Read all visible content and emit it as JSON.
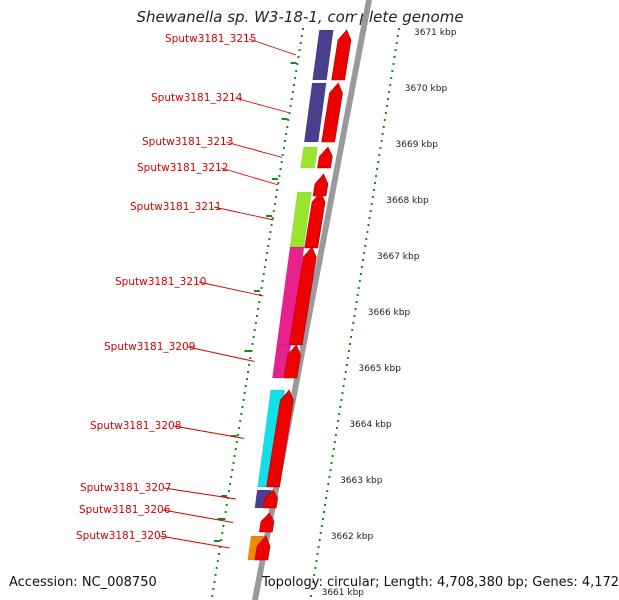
{
  "title": "Shewanella sp. W3-18-1, complete genome",
  "footer": {
    "accession": "Accession: NC_008750",
    "topology": "Topology: circular; Length: 4,708,380 bp; Genes: 4,172"
  },
  "kbp_ticks": [
    {
      "label": "3671 kbp",
      "pos": 3671
    },
    {
      "label": "3670 kbp",
      "pos": 3670
    },
    {
      "label": "3669 kbp",
      "pos": 3669
    },
    {
      "label": "3668 kbp",
      "pos": 3668
    },
    {
      "label": "3667 kbp",
      "pos": 3667
    },
    {
      "label": "3666 kbp",
      "pos": 3666
    },
    {
      "label": "3665 kbp",
      "pos": 3665
    },
    {
      "label": "3664 kbp",
      "pos": 3664
    },
    {
      "label": "3663 kbp",
      "pos": 3663
    },
    {
      "label": "3662 kbp",
      "pos": 3662
    },
    {
      "label": "3661 kbp",
      "pos": 3661
    }
  ],
  "genes": [
    {
      "name": "Sputw3181_3215",
      "color": "#4a3f8c"
    },
    {
      "name": "Sputw3181_3214",
      "color": "#4a3f8c"
    },
    {
      "name": "Sputw3181_3213",
      "color": "#99e62e"
    },
    {
      "name": "Sputw3181_3212",
      "color": ""
    },
    {
      "name": "Sputw3181_3211",
      "color": "#99e62e"
    },
    {
      "name": "Sputw3181_3210",
      "color": "#e8218f"
    },
    {
      "name": "Sputw3181_3209",
      "color": "#e8218f"
    },
    {
      "name": "Sputw3181_3208",
      "color": "#12e0e8"
    },
    {
      "name": "Sputw3181_3207",
      "color": "#4a3f8c"
    },
    {
      "name": "Sputw3181_3206",
      "color": ""
    },
    {
      "name": "Sputw3181_3205",
      "color": "#f08a00"
    }
  ],
  "colors": {
    "gene_arrow": "#ee0000",
    "backbone": "#9a9a9a",
    "tick_dots": "#1a8a1a"
  }
}
